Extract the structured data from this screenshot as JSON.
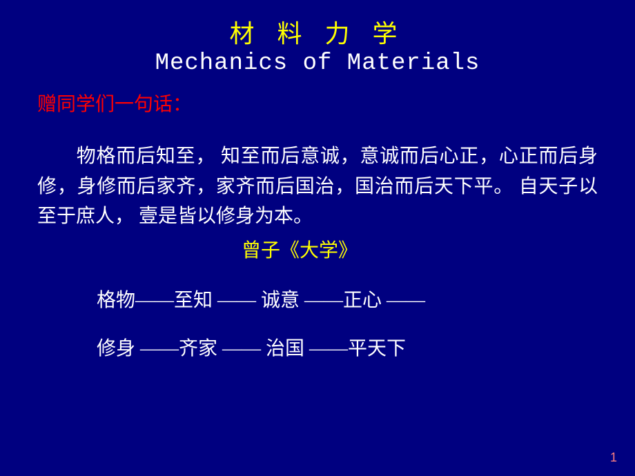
{
  "colors": {
    "background": "#000080",
    "title_cn": "#ffff00",
    "title_en": "#ffffff",
    "greeting": "#ff0000",
    "body_text": "#ffffff",
    "attribution": "#ffff00",
    "page_number": "#ff8080"
  },
  "typography": {
    "title_cn_size": 36,
    "title_en_size": 34,
    "body_size": 28,
    "page_number_size": 18,
    "cn_font": "SimSun",
    "en_font": "Courier New"
  },
  "title": {
    "cn": "材 料 力 学",
    "en": "Mechanics of Materials"
  },
  "greeting": "赠同学们一句话：",
  "quote": "物格而后知至， 知至而后意诚，意诚而后心正，心正而后身修，身修而后家齐，家齐而后国治，国治而后天下平。  自天子以至于庶人， 壹是皆以修身为本。",
  "attribution": "曾子《大学》",
  "sequence": {
    "line1": "格物——至知 —— 诚意 ——正心 ——",
    "line2": "修身 ——齐家 —— 治国 ——平天下"
  },
  "page_number": "1"
}
